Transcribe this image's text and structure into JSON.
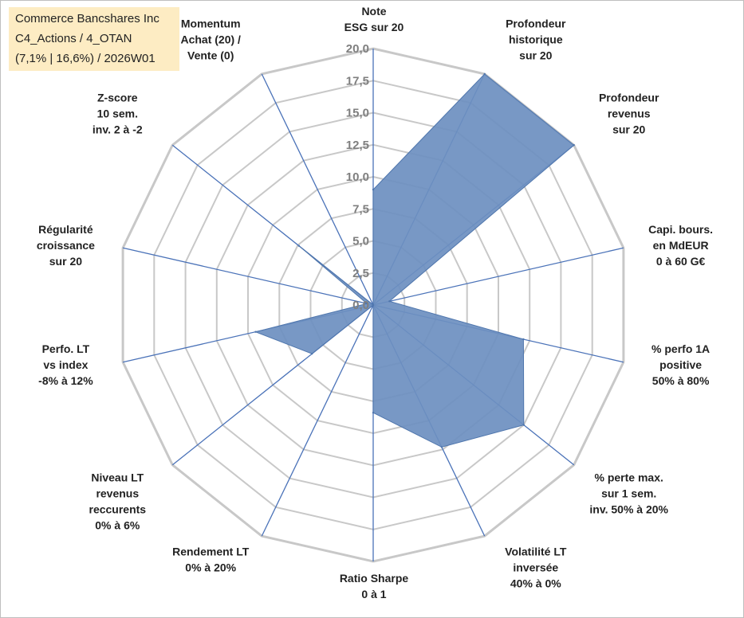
{
  "title_lines": [
    "Commerce Bancshares Inc",
    "C4_Actions / 4_OTAN",
    "(7,1% | 16,6%) / 2026W01"
  ],
  "chart_data": {
    "type": "radar",
    "rmax": 20,
    "rings": [
      0,
      2.5,
      5,
      7.5,
      10,
      12.5,
      15,
      17.5,
      20
    ],
    "tick_labels": [
      "0,0",
      "2,5",
      "5,0",
      "7,5",
      "10,0",
      "12,5",
      "15,0",
      "17,5",
      "20,0"
    ],
    "grid": true,
    "fill_color": "#6d8fc0",
    "stroke_color": "#4f76ad",
    "grid_color": "#c8c8c8",
    "spoke_color": "#4a72b8",
    "axes": [
      {
        "label": [
          "Note",
          "ESG sur 20"
        ],
        "value": 9.0
      },
      {
        "label": [
          "Profondeur",
          "historique",
          "sur 20"
        ],
        "value": 20.0
      },
      {
        "label": [
          "Profondeur",
          "revenus",
          "sur 20"
        ],
        "value": 20.0
      },
      {
        "label": [
          "Capi. bours.",
          "en MdEUR",
          "0 à 60 G€"
        ],
        "value": 1.3
      },
      {
        "label": [
          "% perfo 1A",
          "positive",
          "50% à 80%"
        ],
        "value": 12.0
      },
      {
        "label": [
          "% perte max.",
          "sur 1 sem.",
          "inv. 50% à 20%"
        ],
        "value": 15.0
      },
      {
        "label": [
          "Volatilité LT",
          "inversée",
          "40% à 0%"
        ],
        "value": 12.3
      },
      {
        "label": [
          "Ratio Sharpe",
          "0 à 1"
        ],
        "value": 8.4
      },
      {
        "label": [
          "Rendement LT",
          "0% à 20%"
        ],
        "value": 0.0
      },
      {
        "label": [
          "Niveau LT",
          "revenus",
          "reccurents",
          "0% à 6%"
        ],
        "value": 6.1
      },
      {
        "label": [
          "Perfo. LT",
          "vs index",
          "-8% à 12%"
        ],
        "value": 9.4
      },
      {
        "label": [
          "Régularité",
          "croissance",
          "sur 20"
        ],
        "value": 0.5
      },
      {
        "label": [
          "Z-score",
          "10 sem.",
          "inv. 2 à -2"
        ],
        "value": 7.4
      },
      {
        "label": [
          "Momentum",
          "Achat (20) /",
          "Vente (0)"
        ],
        "value": 0.0
      }
    ]
  }
}
